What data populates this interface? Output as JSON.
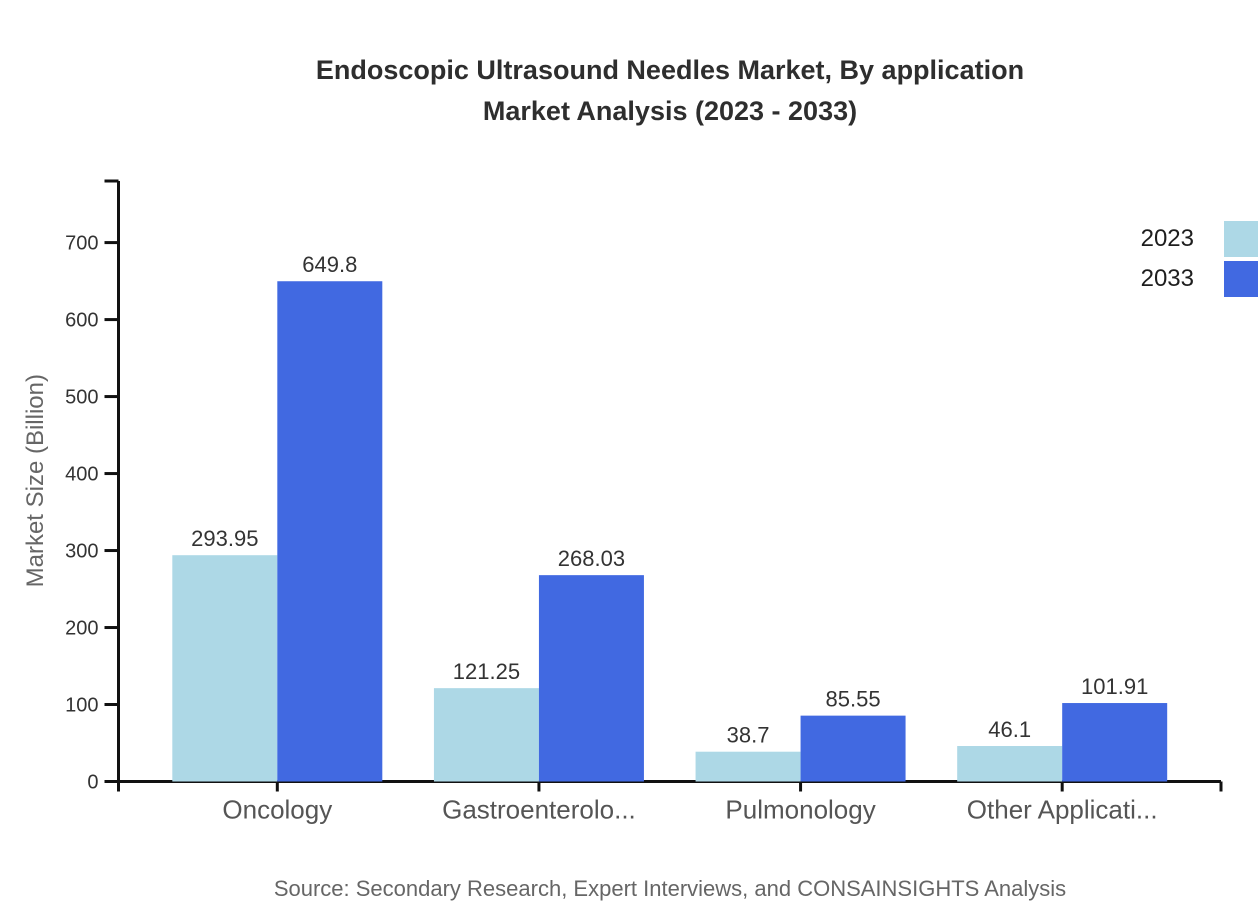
{
  "title": {
    "line1": "Endoscopic Ultrasound Needles Market, By application",
    "line2": "Market Analysis (2023 - 2033)"
  },
  "source": "Source: Secondary Research, Expert Interviews, and CONSAINSIGHTS Analysis",
  "legend": [
    {
      "label": "2023",
      "color": "#ADD8E6"
    },
    {
      "label": "2033",
      "color": "#4169E1"
    }
  ],
  "colors": {
    "series_2023": "#ADD8E6",
    "series_2033": "#4169E1",
    "axis": "#111111",
    "tick_label": "#333333",
    "category_label": "#555555",
    "value_label": "#333333",
    "title": "#2e2e2e",
    "muted_text": "#666666"
  },
  "chart_data": {
    "type": "bar",
    "title": "Endoscopic Ultrasound Needles Market, By application Market Analysis (2023 - 2033)",
    "categories": [
      "Oncology",
      "Gastroenterolo...",
      "Pulmonology",
      "Other Applicati..."
    ],
    "series": [
      {
        "name": "2023",
        "color": "#ADD8E6",
        "values": [
          293.95,
          121.25,
          38.7,
          46.1
        ]
      },
      {
        "name": "2033",
        "color": "#4169E1",
        "values": [
          649.8,
          268.03,
          85.55,
          101.91
        ]
      }
    ],
    "xlabel": "",
    "ylabel": "Market Size (Billion)",
    "ylim": [
      0,
      780
    ],
    "yticks": [
      0,
      100,
      200,
      300,
      400,
      500,
      600,
      700
    ],
    "value_labels_shown": true,
    "grid": false,
    "legend_position": "top-right"
  }
}
